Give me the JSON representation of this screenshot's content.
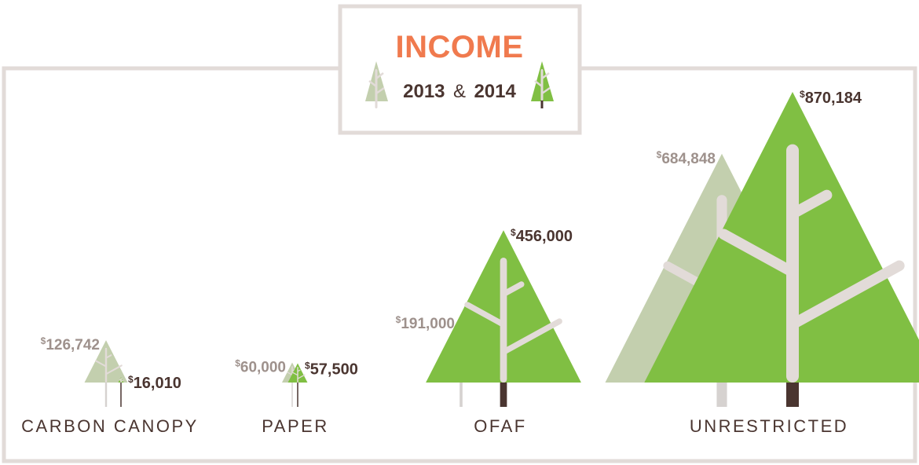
{
  "header": {
    "title": "INCOME",
    "year_a": "2013",
    "amp": "&",
    "year_b": "2014"
  },
  "chart_data": {
    "type": "bar",
    "title": "INCOME",
    "currency_symbol": "$",
    "categories": [
      "CARBON CANOPY",
      "PAPER",
      "OFAF",
      "UNRESTRICTED"
    ],
    "series": [
      {
        "name": "2013",
        "values": [
          126742,
          60000,
          191000,
          684848
        ],
        "labels": [
          "126,742",
          "60,000",
          "191,000",
          "684,848"
        ]
      },
      {
        "name": "2014",
        "values": [
          16010,
          57500,
          456000,
          870184
        ],
        "labels": [
          "16,010",
          "57,500",
          "456,000",
          "870,184"
        ]
      }
    ],
    "colors": {
      "tree_2013": "#c3cfae",
      "tree_2014": "#80bf43",
      "trunk_2013": "#d6d2d0",
      "trunk_2014": "#4a3530",
      "branch": "#e2dbd8",
      "frame": "#e2dbd8",
      "title": "#f07a4e"
    }
  }
}
